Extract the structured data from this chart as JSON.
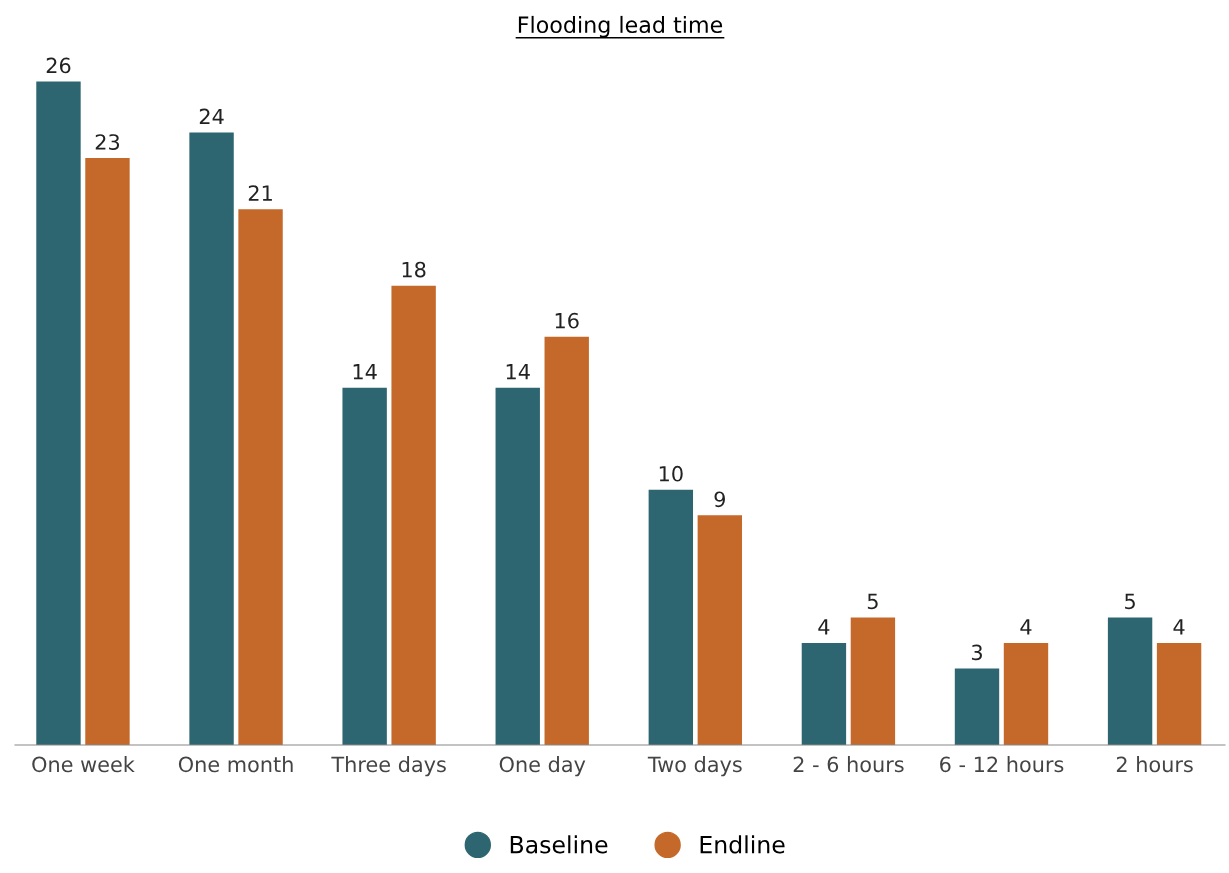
{
  "chart_data": {
    "type": "bar",
    "title": "Flooding lead time",
    "categories": [
      "One week",
      "One month",
      "Three days",
      "One day",
      "Two days",
      "2 - 6 hours",
      "6 - 12 hours",
      "2 hours"
    ],
    "series": [
      {
        "name": "Baseline",
        "color": "#2d6670",
        "values": [
          26,
          24,
          14,
          14,
          10,
          4,
          3,
          5
        ]
      },
      {
        "name": "Endline",
        "color": "#c5692a",
        "values": [
          23,
          21,
          18,
          16,
          9,
          5,
          4,
          4
        ]
      }
    ],
    "data_labels": true,
    "legend": "bottom",
    "grid": false,
    "tick_labels": "x"
  }
}
